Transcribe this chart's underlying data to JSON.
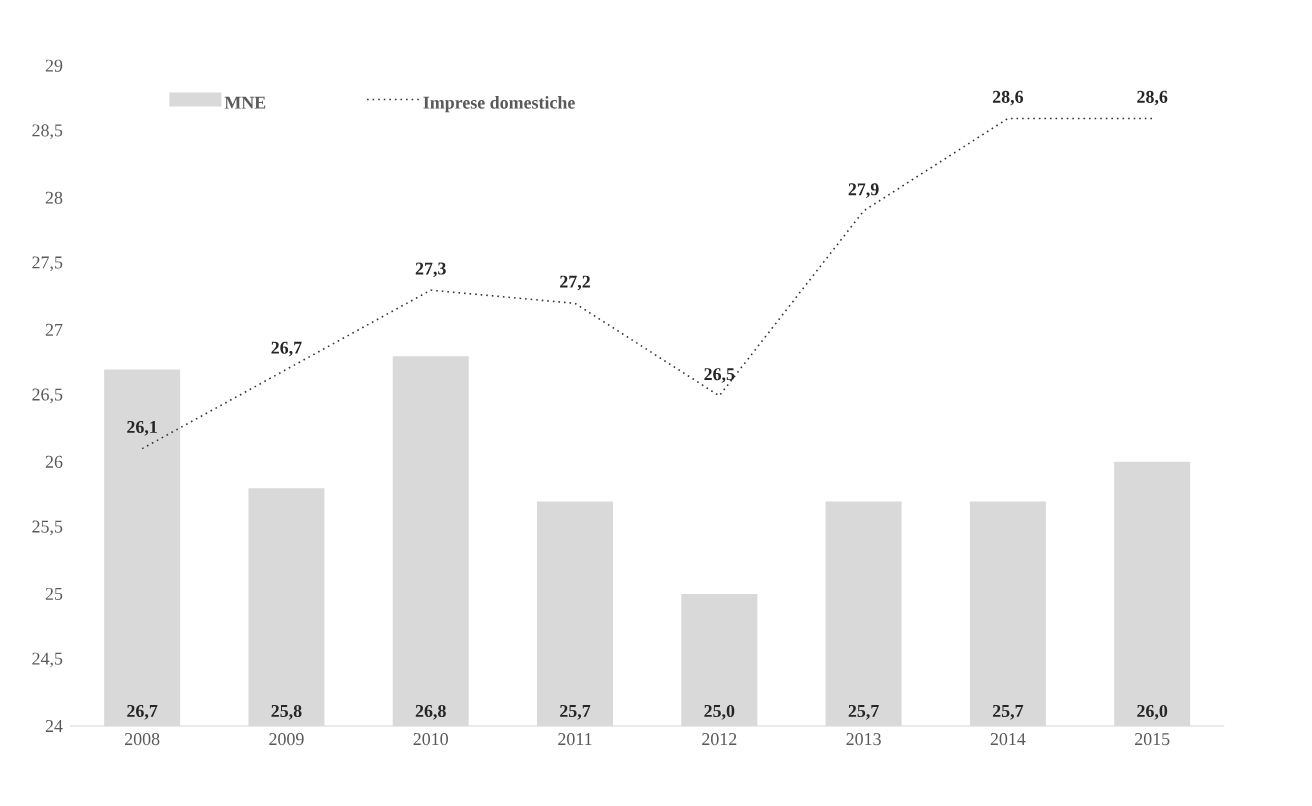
{
  "chart_data": {
    "type": "bar",
    "categories": [
      "2008",
      "2009",
      "2010",
      "2011",
      "2012",
      "2013",
      "2014",
      "2015"
    ],
    "series": [
      {
        "name": "MNE",
        "color": "#d9d9d9",
        "values": [
          26.7,
          25.8,
          26.8,
          25.7,
          25.0,
          25.7,
          25.7,
          26.0
        ],
        "value_labels": [
          "26,7",
          "25,8",
          "26,8",
          "25,7",
          "25,0",
          "25,7",
          "25,7",
          "26,0"
        ]
      },
      {
        "name": "Imprese domestiche",
        "type": "line",
        "color": "#333333",
        "line_style": "dotted",
        "values": [
          26.1,
          26.7,
          27.3,
          27.2,
          26.5,
          27.9,
          28.6,
          28.6
        ],
        "value_labels": [
          "26,1",
          "26,7",
          "27,3",
          "27,2",
          "26,5",
          "27,9",
          "28,6",
          "28,6"
        ]
      }
    ],
    "ylim": [
      24,
      29
    ],
    "yticks": [
      24,
      {
        "value": 24.5,
        "label": "24,5"
      },
      25,
      {
        "value": 25.5,
        "label": "25,5"
      },
      26,
      {
        "value": 26.5,
        "label": "26,5"
      },
      27,
      {
        "value": 27.5,
        "label": "27,5"
      },
      28,
      {
        "value": 28.5,
        "label": "28,5"
      },
      29
    ],
    "legend": "top left"
  }
}
